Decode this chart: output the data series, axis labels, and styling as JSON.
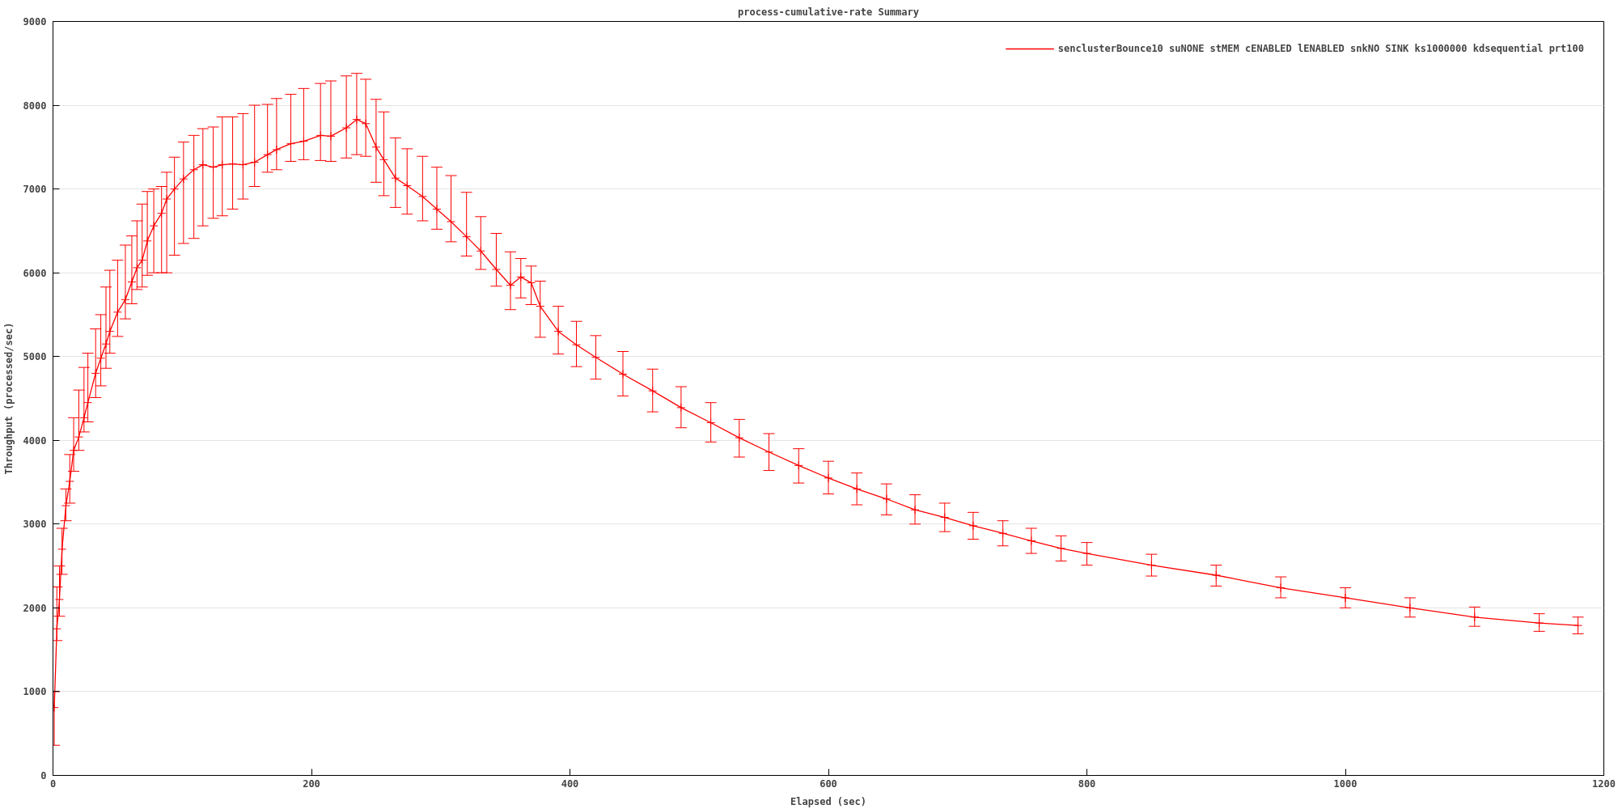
{
  "chart_data": {
    "type": "line",
    "title": "process-cumulative-rate Summary",
    "xlabel": "Elapsed (sec)",
    "ylabel": "Throughput (processed/sec)",
    "xlim": [
      0,
      1200
    ],
    "ylim": [
      0,
      9000
    ],
    "xticks": [
      0,
      200,
      400,
      600,
      800,
      1000,
      1200
    ],
    "yticks": [
      0,
      1000,
      2000,
      3000,
      4000,
      5000,
      6000,
      7000,
      8000,
      9000
    ],
    "grid": "y",
    "legend": "top right",
    "marker": "cross",
    "line_style": "solid",
    "x": [
      1,
      3,
      5,
      7,
      10,
      13,
      16,
      20,
      24,
      27,
      33,
      37,
      41,
      44,
      50,
      56,
      61,
      65,
      69,
      73,
      78,
      84,
      88,
      94,
      101,
      109,
      116,
      124,
      131,
      139,
      147,
      156,
      166,
      173,
      184,
      194,
      207,
      215,
      227,
      235,
      242,
      250,
      256,
      265,
      274,
      286,
      297,
      308,
      320,
      331,
      343,
      354,
      362,
      370,
      377,
      391,
      405,
      420,
      441,
      464,
      486,
      509,
      531,
      554,
      577,
      600,
      622,
      645,
      667,
      690,
      712,
      735,
      757,
      780,
      800,
      850,
      900,
      950,
      1000,
      1050,
      1100,
      1150,
      1180
    ],
    "series": [
      {
        "name": "senclusterBounce10 suNONE stMEM cENABLED lENABLED snkNO SINK ks1000000 kdsequential prt100",
        "color": "#ff0000",
        "values": [
          810,
          1750,
          2100,
          2700,
          3220,
          3510,
          3880,
          4040,
          4270,
          4450,
          4800,
          4980,
          5150,
          5300,
          5530,
          5680,
          5890,
          6060,
          6150,
          6380,
          6560,
          6710,
          6880,
          7000,
          7120,
          7230,
          7290,
          7260,
          7290,
          7300,
          7290,
          7320,
          7410,
          7470,
          7540,
          7570,
          7640,
          7630,
          7730,
          7830,
          7780,
          7500,
          7350,
          7130,
          7040,
          6910,
          6760,
          6610,
          6430,
          6260,
          6040,
          5850,
          5950,
          5880,
          5600,
          5300,
          5140,
          4990,
          4790,
          4590,
          4390,
          4210,
          4030,
          3860,
          3700,
          3550,
          3420,
          3300,
          3170,
          3080,
          2980,
          2890,
          2800,
          2710,
          2650,
          2510,
          2390,
          2240,
          2120,
          2000,
          1890,
          1820,
          1790
        ],
        "errors": [
          [
            360,
            1000
          ],
          [
            1610,
            2250
          ],
          [
            1900,
            2500
          ],
          [
            2400,
            2950
          ],
          [
            3040,
            3420
          ],
          [
            3250,
            3830
          ],
          [
            3630,
            4270
          ],
          [
            3880,
            4600
          ],
          [
            4100,
            4870
          ],
          [
            4220,
            5040
          ],
          [
            4510,
            5330
          ],
          [
            4650,
            5500
          ],
          [
            4860,
            5830
          ],
          [
            5040,
            6030
          ],
          [
            5240,
            6150
          ],
          [
            5450,
            6330
          ],
          [
            5630,
            6440
          ],
          [
            5800,
            6620
          ],
          [
            5830,
            6820
          ],
          [
            5970,
            6970
          ],
          [
            6000,
            7000
          ],
          [
            6000,
            7030
          ],
          [
            6000,
            7200
          ],
          [
            6210,
            7380
          ],
          [
            6350,
            7560
          ],
          [
            6410,
            7640
          ],
          [
            6560,
            7720
          ],
          [
            6650,
            7740
          ],
          [
            6680,
            7860
          ],
          [
            6760,
            7860
          ],
          [
            6880,
            7900
          ],
          [
            7030,
            8000
          ],
          [
            7200,
            8010
          ],
          [
            7230,
            8080
          ],
          [
            7330,
            8130
          ],
          [
            7350,
            8200
          ],
          [
            7340,
            8260
          ],
          [
            7330,
            8290
          ],
          [
            7370,
            8350
          ],
          [
            7410,
            8380
          ],
          [
            7390,
            8310
          ],
          [
            7080,
            8070
          ],
          [
            6920,
            7920
          ],
          [
            6780,
            7610
          ],
          [
            6700,
            7480
          ],
          [
            6620,
            7390
          ],
          [
            6520,
            7260
          ],
          [
            6370,
            7160
          ],
          [
            6200,
            6960
          ],
          [
            6040,
            6670
          ],
          [
            5840,
            6470
          ],
          [
            5560,
            6250
          ],
          [
            5700,
            6170
          ],
          [
            5620,
            6080
          ],
          [
            5230,
            5900
          ],
          [
            5030,
            5600
          ],
          [
            4880,
            5420
          ],
          [
            4730,
            5250
          ],
          [
            4530,
            5060
          ],
          [
            4340,
            4850
          ],
          [
            4150,
            4640
          ],
          [
            3980,
            4450
          ],
          [
            3800,
            4250
          ],
          [
            3640,
            4080
          ],
          [
            3490,
            3900
          ],
          [
            3360,
            3750
          ],
          [
            3230,
            3610
          ],
          [
            3110,
            3480
          ],
          [
            3000,
            3350
          ],
          [
            2910,
            3250
          ],
          [
            2820,
            3140
          ],
          [
            2740,
            3040
          ],
          [
            2650,
            2950
          ],
          [
            2560,
            2860
          ],
          [
            2510,
            2780
          ],
          [
            2380,
            2640
          ],
          [
            2260,
            2510
          ],
          [
            2120,
            2370
          ],
          [
            2000,
            2240
          ],
          [
            1890,
            2120
          ],
          [
            1780,
            2010
          ],
          [
            1720,
            1930
          ],
          [
            1690,
            1890
          ]
        ]
      }
    ]
  }
}
